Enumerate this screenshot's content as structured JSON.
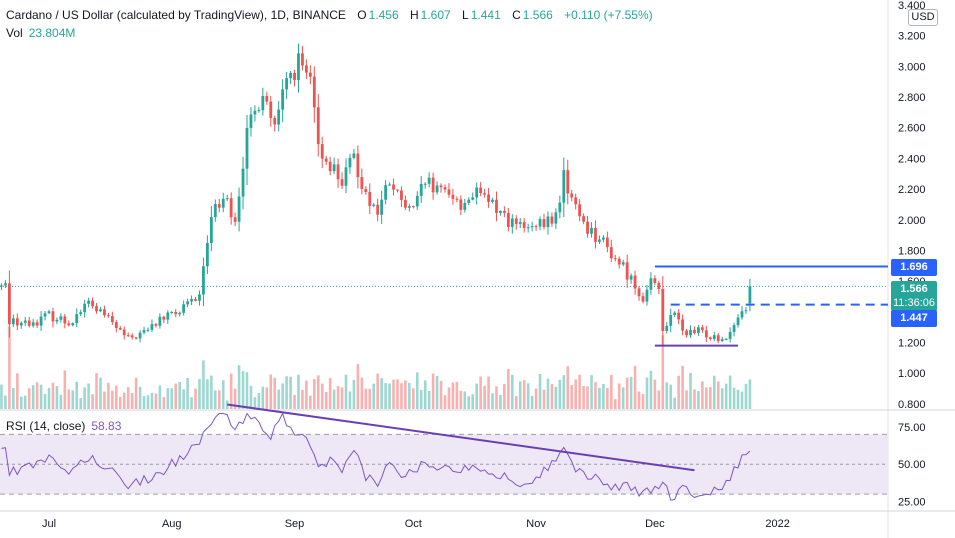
{
  "legend": {
    "title": "Cardano / US Dollar (calculated by TradingView), 1D, BINANCE",
    "o_label": "O",
    "o": "1.456",
    "h_label": "H",
    "h": "1.607",
    "l_label": "L",
    "l": "1.441",
    "c_label": "C",
    "c": "1.566",
    "change": "+0.110 (+7.55%)"
  },
  "volume": {
    "label": "Vol",
    "value": "23.804M"
  },
  "rsi": {
    "label": "RSI (14, close)",
    "value": "58.83"
  },
  "currency": "USD",
  "tags": {
    "current_price": "1.566",
    "countdown": "11:36:06",
    "level_high": "1.696",
    "level_low": "1.447"
  },
  "colors": {
    "up": "#26a69a",
    "down": "#ef5350",
    "level": "#2962ff",
    "trendline": "#6a3fb5",
    "rsi": "#7e57c2",
    "rsi_band": "#ede7f6"
  },
  "chart_data": [
    {
      "type": "candlestick",
      "title": "Cardano / US Dollar (calculated by TradingView), 1D, BINANCE",
      "ylim": [
        0.78,
        3.4
      ],
      "y_ticks": [
        0.8,
        1.0,
        1.2,
        1.4,
        1.6,
        1.8,
        2.0,
        2.2,
        2.4,
        2.6,
        2.8,
        3.0,
        3.2,
        3.4
      ],
      "y_tick_labels": [
        "0.800",
        "1.000",
        "1.200",
        "1.400",
        "1.600",
        "1.800",
        "2.000",
        "2.200",
        "2.400",
        "2.600",
        "2.800",
        "3.000",
        "3.200",
        "3.400"
      ],
      "x_ticks": [
        {
          "day": 0,
          "label": "Jul"
        },
        {
          "day": 31,
          "label": "Aug"
        },
        {
          "day": 62,
          "label": "Sep"
        },
        {
          "day": 92,
          "label": "Oct"
        },
        {
          "day": 123,
          "label": "Nov"
        },
        {
          "day": 153,
          "label": "Dec"
        },
        {
          "day": 184,
          "label": "2022"
        }
      ],
      "close_series_anchors": [
        [
          -10,
          1.35
        ],
        [
          -5,
          1.32
        ],
        [
          0,
          1.38
        ],
        [
          5,
          1.33
        ],
        [
          10,
          1.46
        ],
        [
          15,
          1.35
        ],
        [
          20,
          1.22
        ],
        [
          25,
          1.28
        ],
        [
          28,
          1.35
        ],
        [
          33,
          1.4
        ],
        [
          38,
          1.5
        ],
        [
          41,
          2.05
        ],
        [
          44,
          2.15
        ],
        [
          47,
          2.02
        ],
        [
          50,
          2.55
        ],
        [
          54,
          2.85
        ],
        [
          57,
          2.58
        ],
        [
          60,
          2.9
        ],
        [
          63,
          3.02
        ],
        [
          66,
          2.9
        ],
        [
          68,
          2.45
        ],
        [
          71,
          2.37
        ],
        [
          74,
          2.25
        ],
        [
          77,
          2.4
        ],
        [
          80,
          2.17
        ],
        [
          83,
          2.05
        ],
        [
          86,
          2.25
        ],
        [
          89,
          2.1
        ],
        [
          92,
          2.05
        ],
        [
          95,
          2.25
        ],
        [
          98,
          2.17
        ],
        [
          101,
          2.2
        ],
        [
          104,
          2.08
        ],
        [
          107,
          2.18
        ],
        [
          110,
          2.13
        ],
        [
          113,
          2.08
        ],
        [
          116,
          2.0
        ],
        [
          119,
          1.95
        ],
        [
          122,
          1.93
        ],
        [
          125,
          1.97
        ],
        [
          128,
          2.02
        ],
        [
          130,
          2.28
        ],
        [
          133,
          2.07
        ],
        [
          136,
          1.95
        ],
        [
          139,
          1.88
        ],
        [
          142,
          1.78
        ],
        [
          145,
          1.69
        ],
        [
          148,
          1.57
        ],
        [
          150,
          1.5
        ],
        [
          152,
          1.58
        ],
        [
          154,
          1.55
        ],
        [
          155,
          1.3
        ],
        [
          158,
          1.38
        ],
        [
          161,
          1.25
        ],
        [
          164,
          1.27
        ],
        [
          167,
          1.25
        ],
        [
          170,
          1.23
        ],
        [
          172,
          1.28
        ],
        [
          174,
          1.37
        ],
        [
          176,
          1.44
        ],
        [
          177,
          1.566
        ]
      ],
      "levels": [
        {
          "price": 1.696,
          "style": "solid",
          "from_day": 153,
          "label": "1.696"
        },
        {
          "price": 1.447,
          "style": "dashed",
          "from_day": 157,
          "label": "1.447"
        },
        {
          "price": 1.18,
          "style": "solid",
          "from_day": 153,
          "to_day": 174
        }
      ],
      "current_price": 1.566
    },
    {
      "type": "line",
      "title": "RSI (14, close)",
      "ylim": [
        20,
        85
      ],
      "y_ticks": [
        25,
        50,
        75
      ],
      "y_tick_labels": [
        "25.00",
        "50.00",
        "75.00"
      ],
      "band": [
        30,
        70
      ],
      "mid": 50,
      "anchors": [
        [
          -10,
          45
        ],
        [
          -5,
          48
        ],
        [
          0,
          53
        ],
        [
          5,
          44
        ],
        [
          10,
          55
        ],
        [
          15,
          47
        ],
        [
          20,
          37
        ],
        [
          25,
          40
        ],
        [
          30,
          48
        ],
        [
          35,
          58
        ],
        [
          38,
          63
        ],
        [
          41,
          80
        ],
        [
          44,
          85
        ],
        [
          47,
          70
        ],
        [
          50,
          85
        ],
        [
          53,
          75
        ],
        [
          56,
          70
        ],
        [
          59,
          82
        ],
        [
          62,
          72
        ],
        [
          65,
          65
        ],
        [
          68,
          48
        ],
        [
          71,
          52
        ],
        [
          74,
          44
        ],
        [
          77,
          58
        ],
        [
          80,
          42
        ],
        [
          83,
          38
        ],
        [
          86,
          50
        ],
        [
          89,
          43
        ],
        [
          92,
          44
        ],
        [
          95,
          53
        ],
        [
          98,
          48
        ],
        [
          101,
          51
        ],
        [
          104,
          44
        ],
        [
          107,
          52
        ],
        [
          110,
          46
        ],
        [
          113,
          43
        ],
        [
          116,
          40
        ],
        [
          119,
          38
        ],
        [
          122,
          40
        ],
        [
          125,
          45
        ],
        [
          128,
          55
        ],
        [
          130,
          63
        ],
        [
          133,
          48
        ],
        [
          136,
          42
        ],
        [
          139,
          40
        ],
        [
          142,
          36
        ],
        [
          145,
          35
        ],
        [
          148,
          33
        ],
        [
          150,
          30
        ],
        [
          153,
          35
        ],
        [
          155,
          38
        ],
        [
          157,
          28
        ],
        [
          160,
          33
        ],
        [
          163,
          30
        ],
        [
          166,
          32
        ],
        [
          169,
          33
        ],
        [
          172,
          40
        ],
        [
          174,
          50
        ],
        [
          176,
          56
        ],
        [
          177,
          58.83
        ]
      ],
      "trendline": [
        [
          45,
          90
        ],
        [
          163,
          46
        ]
      ],
      "value": 58.83
    }
  ]
}
